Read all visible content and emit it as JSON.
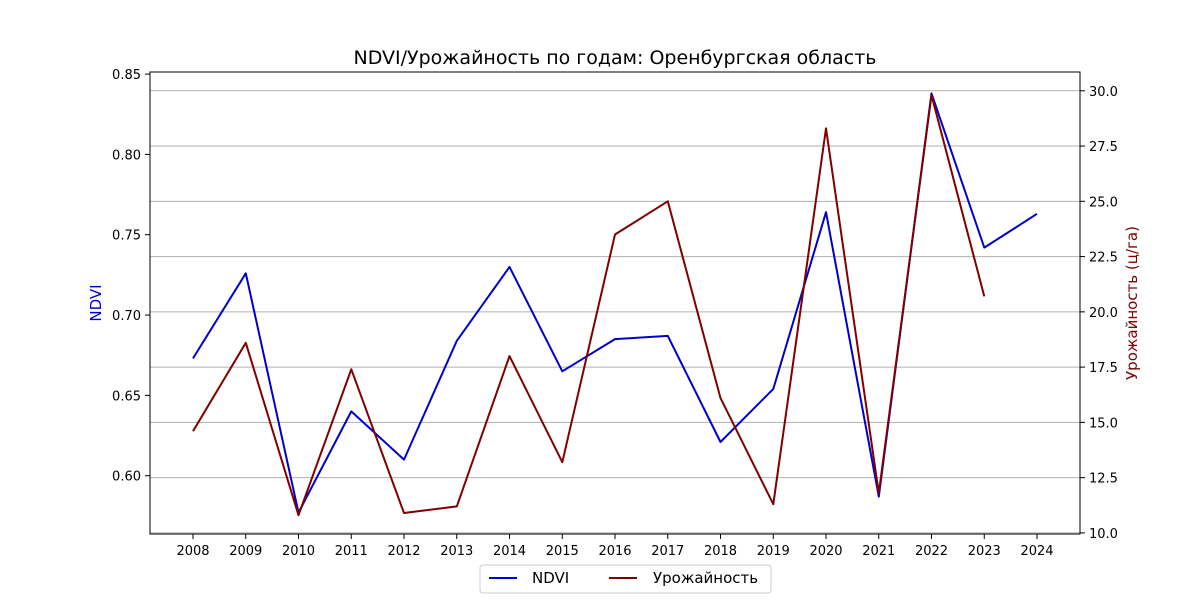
{
  "chart_data": {
    "type": "line",
    "title": "NDVI/Урожайность по годам: Оренбургская область",
    "categories": [
      "2008",
      "2009",
      "2010",
      "2011",
      "2012",
      "2013",
      "2014",
      "2015",
      "2016",
      "2017",
      "2018",
      "2019",
      "2020",
      "2021",
      "2022",
      "2023",
      "2024"
    ],
    "series": [
      {
        "name": "NDVI",
        "axis": "left",
        "color": "#0000cc",
        "values": [
          0.673,
          0.726,
          0.577,
          0.64,
          0.61,
          0.684,
          0.73,
          0.665,
          0.685,
          0.687,
          0.621,
          0.654,
          0.764,
          0.587,
          0.838,
          0.742,
          0.763
        ]
      },
      {
        "name": "Урожайность",
        "axis": "right",
        "color": "#800000",
        "values": [
          14.6,
          18.6,
          10.8,
          17.4,
          10.9,
          11.2,
          18.0,
          13.2,
          23.5,
          25.0,
          16.1,
          11.3,
          28.3,
          11.8,
          29.8,
          20.7,
          null
        ]
      }
    ],
    "ylabel_left": "NDVI",
    "ylabel_right": "Урожайность (ц/га)",
    "ylim_left": [
      0.5637,
      0.8513
    ],
    "yticks_left": [
      "0.60",
      "0.65",
      "0.70",
      "0.75",
      "0.80",
      "0.85"
    ],
    "ylim_right": [
      9.95,
      30.85
    ],
    "yticks_right": [
      "10.0",
      "12.5",
      "15.0",
      "17.5",
      "20.0",
      "22.5",
      "25.0",
      "27.5",
      "30.0"
    ],
    "grid": true,
    "grid_axis": "right-y",
    "legend_placement": "bottom-center"
  }
}
